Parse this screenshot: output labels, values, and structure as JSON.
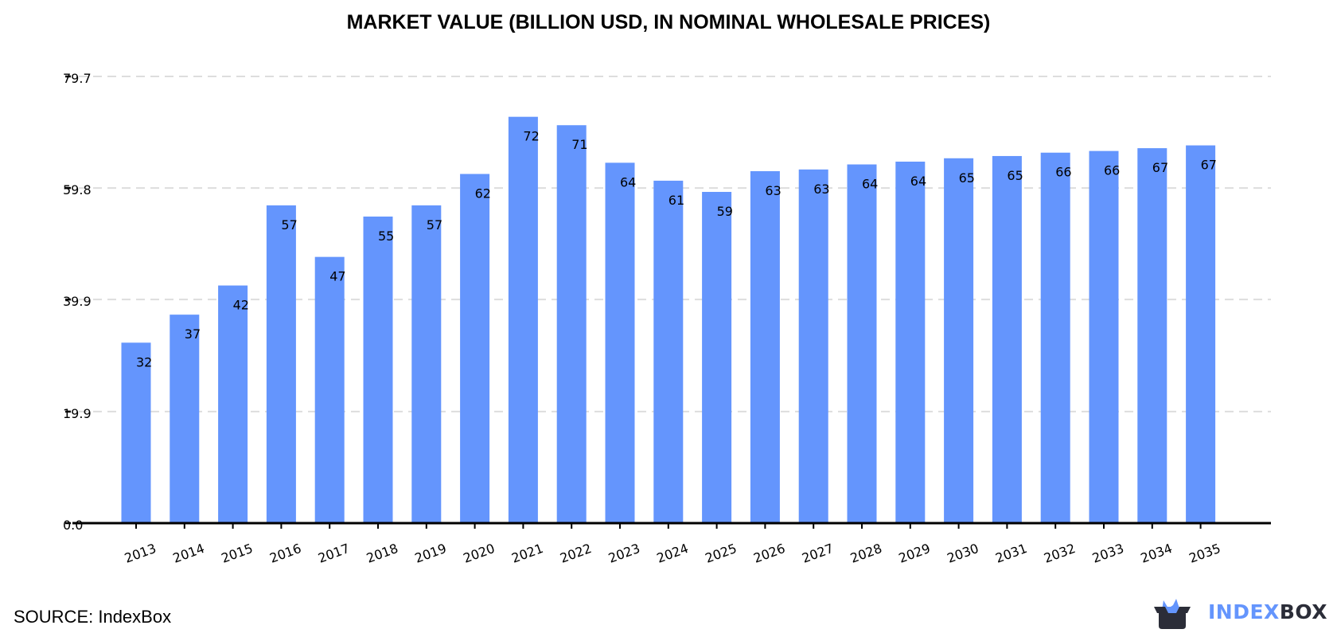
{
  "chart_data": {
    "type": "bar",
    "title": "MARKET VALUE (BILLION USD, IN NOMINAL WHOLESALE PRICES)",
    "xlabel": "",
    "ylabel": "",
    "categories": [
      "2013",
      "2014",
      "2015",
      "2016",
      "2017",
      "2018",
      "2019",
      "2020",
      "2021",
      "2022",
      "2023",
      "2024",
      "2025",
      "2026",
      "2027",
      "2028",
      "2029",
      "2030",
      "2031",
      "2032",
      "2033",
      "2034",
      "2035"
    ],
    "values": [
      32.2,
      37.2,
      42.4,
      56.7,
      47.5,
      54.7,
      56.7,
      62.3,
      72.5,
      71.0,
      64.3,
      61.1,
      59.1,
      62.8,
      63.1,
      64.0,
      64.5,
      65.1,
      65.5,
      66.1,
      66.4,
      66.9,
      67.4
    ],
    "data_labels": [
      "32",
      "37",
      "42",
      "57",
      "47",
      "55",
      "57",
      "62",
      "72",
      "71",
      "64",
      "61",
      "59",
      "63",
      "63",
      "64",
      "64",
      "65",
      "65",
      "66",
      "66",
      "67",
      "67"
    ],
    "yticks": [
      "0.0",
      "19.9",
      "39.9",
      "59.8",
      "79.7"
    ],
    "ytick_values": [
      0,
      19.9,
      39.9,
      59.8,
      79.7
    ],
    "ylim": [
      0,
      79.7
    ],
    "grid": "horizontal dashed",
    "legend": "none",
    "bar_color": "#6495fd"
  },
  "footer": {
    "source": "SOURCE: IndexBox"
  },
  "logo": {
    "part1": "INDEX",
    "part2": "BOX",
    "accent": "#6495fd",
    "dark": "#2b2d38"
  }
}
